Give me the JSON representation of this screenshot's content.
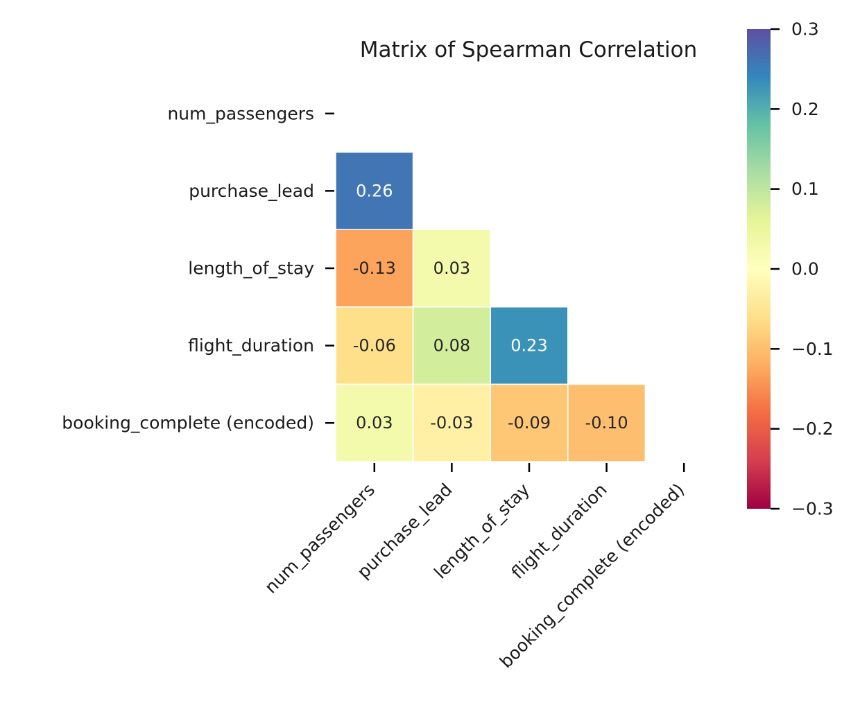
{
  "chart_data": {
    "type": "heatmap",
    "title": "Matrix of Spearman Correlation",
    "variables": [
      "num_passengers",
      "purchase_lead",
      "length_of_stay",
      "flight_duration",
      "booking_complete (encoded)"
    ],
    "mask": "upper-triangle-including-diagonal",
    "cells": [
      {
        "row": 1,
        "col": 0,
        "value": 0.26,
        "label": "0.26"
      },
      {
        "row": 2,
        "col": 0,
        "value": -0.13,
        "label": "-0.13"
      },
      {
        "row": 2,
        "col": 1,
        "value": 0.03,
        "label": "0.03"
      },
      {
        "row": 3,
        "col": 0,
        "value": -0.06,
        "label": "-0.06"
      },
      {
        "row": 3,
        "col": 1,
        "value": 0.08,
        "label": "0.08"
      },
      {
        "row": 3,
        "col": 2,
        "value": 0.23,
        "label": "0.23"
      },
      {
        "row": 4,
        "col": 0,
        "value": 0.03,
        "label": "0.03"
      },
      {
        "row": 4,
        "col": 1,
        "value": -0.03,
        "label": "-0.03"
      },
      {
        "row": 4,
        "col": 2,
        "value": -0.09,
        "label": "-0.09"
      },
      {
        "row": 4,
        "col": 3,
        "value": -0.1,
        "label": "-0.10"
      }
    ],
    "colormap": "Spectral",
    "vmin": -0.3,
    "vmax": 0.3,
    "colorbar": {
      "ticks": [
        0.3,
        0.2,
        0.1,
        0.0,
        -0.1,
        -0.2,
        -0.3
      ],
      "tick_labels": [
        "0.3",
        "0.2",
        "0.1",
        "0.0",
        "−0.1",
        "−0.2",
        "−0.3"
      ],
      "position": "right"
    },
    "cell_border_color": "#ffffff"
  }
}
